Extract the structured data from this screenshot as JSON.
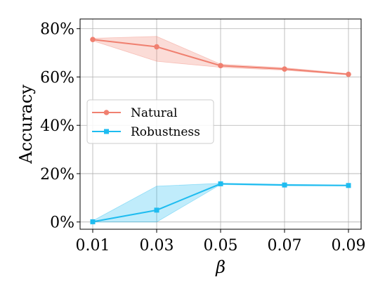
{
  "chart_data": {
    "type": "line",
    "x": [
      "0.01",
      "0.03",
      "0.05",
      "0.07",
      "0.09"
    ],
    "xlabel": "β",
    "ylabel": "Accuracy",
    "ylim": [
      -3,
      84
    ],
    "yticks": [
      0,
      20,
      40,
      60,
      80
    ],
    "ytick_labels": [
      "0%",
      "20%",
      "40%",
      "60%",
      "80%"
    ],
    "grid": true,
    "legend_position": "center-left",
    "series": [
      {
        "name": "Natural",
        "color": "#f08070",
        "marker": "circle",
        "values": [
          75.5,
          72.5,
          64.7,
          63.3,
          61.1
        ],
        "band_lower": [
          75.0,
          66.5,
          64.0,
          62.8,
          60.9
        ],
        "band_upper": [
          76.0,
          76.8,
          65.3,
          63.8,
          61.4
        ]
      },
      {
        "name": "Robustness",
        "color": "#1ebcf0",
        "marker": "square",
        "values": [
          0.1,
          4.9,
          15.8,
          15.3,
          15.1
        ],
        "band_lower": [
          0.0,
          0.0,
          15.5,
          15.0,
          14.9
        ],
        "band_upper": [
          0.5,
          14.8,
          16.0,
          15.6,
          15.3
        ]
      }
    ]
  }
}
